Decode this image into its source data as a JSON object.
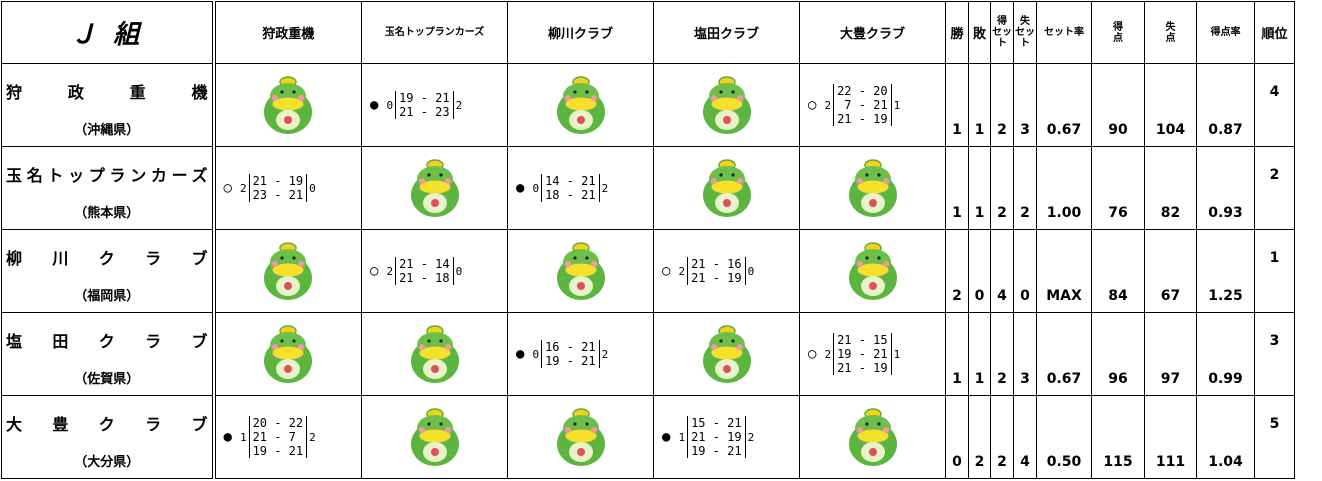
{
  "title": "Ｊ 組",
  "columns": [
    "狩政重機",
    "玉名トップランカーズ",
    "柳川クラブ",
    "塩田クラブ",
    "大豊クラブ"
  ],
  "stat_headers": [
    [
      "勝"
    ],
    [
      "敗"
    ],
    [
      "得",
      "セット"
    ],
    [
      "失",
      "セット"
    ],
    [
      "セット率"
    ],
    [
      "得",
      "点"
    ],
    [
      "失",
      "点"
    ],
    [
      "得点率"
    ],
    [
      "順位"
    ]
  ],
  "rows": [
    {
      "team": "狩政重機",
      "prefecture": "（沖縄県）",
      "matches": [
        null,
        {
          "mark": "●",
          "won": "0",
          "scores": [
            "19 - 21",
            "21 - 23"
          ],
          "lost": "2"
        },
        null,
        null,
        {
          "mark": "○",
          "won": "2",
          "scores": [
            "22 - 20",
            " 7 - 21",
            "21 - 19"
          ],
          "lost": "1"
        }
      ],
      "stats": [
        "1",
        "1",
        "2",
        "3",
        "0.67",
        "90",
        "104",
        "0.87"
      ],
      "rank": "4"
    },
    {
      "team": "玉名トップランカーズ",
      "prefecture": "（熊本県）",
      "matches": [
        {
          "mark": "○",
          "won": "2",
          "scores": [
            "21 - 19",
            "23 - 21"
          ],
          "lost": "0"
        },
        null,
        {
          "mark": "●",
          "won": "0",
          "scores": [
            "14 - 21",
            "18 - 21"
          ],
          "lost": "2"
        },
        null,
        null
      ],
      "stats": [
        "1",
        "1",
        "2",
        "2",
        "1.00",
        "76",
        "82",
        "0.93"
      ],
      "rank": "2"
    },
    {
      "team": "柳川クラブ",
      "prefecture": "（福岡県）",
      "matches": [
        null,
        {
          "mark": "○",
          "won": "2",
          "scores": [
            "21 - 14",
            "21 - 18"
          ],
          "lost": "0"
        },
        null,
        {
          "mark": "○",
          "won": "2",
          "scores": [
            "21 - 16",
            "21 - 19"
          ],
          "lost": "0"
        },
        null
      ],
      "stats": [
        "2",
        "0",
        "4",
        "0",
        "MAX",
        "84",
        "67",
        "1.25"
      ],
      "rank": "1"
    },
    {
      "team": "塩田クラブ",
      "prefecture": "（佐賀県）",
      "matches": [
        null,
        null,
        {
          "mark": "●",
          "won": "0",
          "scores": [
            "16 - 21",
            "19 - 21"
          ],
          "lost": "2"
        },
        null,
        {
          "mark": "○",
          "won": "2",
          "scores": [
            "21 - 15",
            "19 - 21",
            "21 - 19"
          ],
          "lost": "1"
        }
      ],
      "stats": [
        "1",
        "1",
        "2",
        "3",
        "0.67",
        "96",
        "97",
        "0.99"
      ],
      "rank": "3"
    },
    {
      "team": "大豊クラブ",
      "prefecture": "（大分県）",
      "matches": [
        {
          "mark": "●",
          "won": "1",
          "scores": [
            "20 - 22",
            "21 - 7",
            "19 - 21"
          ],
          "lost": "2"
        },
        null,
        null,
        {
          "mark": "●",
          "won": "1",
          "scores": [
            "15 - 21",
            "21 - 19",
            "19 - 21"
          ],
          "lost": "2"
        },
        null
      ],
      "stats": [
        "0",
        "2",
        "2",
        "4",
        "0.50",
        "115",
        "111",
        "1.04"
      ],
      "rank": "5"
    }
  ]
}
